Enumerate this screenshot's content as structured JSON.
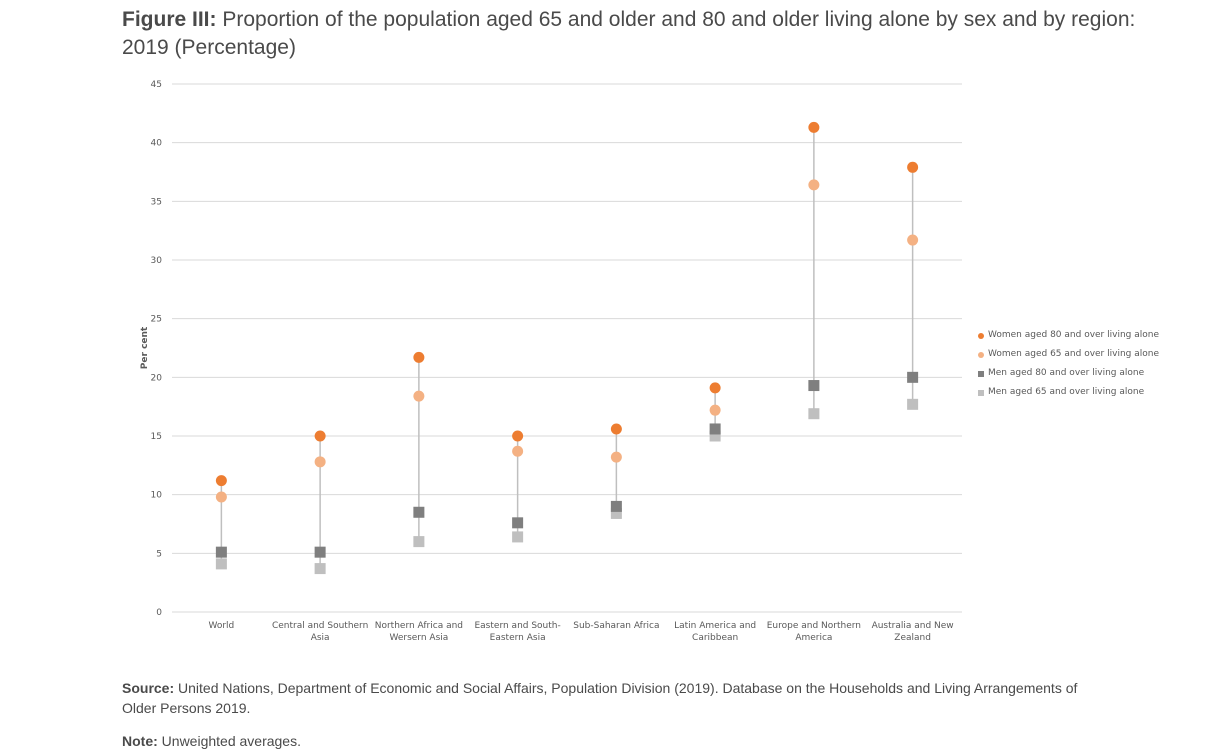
{
  "header": {
    "title_bold": "Figure III:",
    "title_rest": " Proportion of the population aged 65 and older and 80 and older living alone by sex and by region: 2019 (Percentage)"
  },
  "footer": {
    "source_label": "Source:",
    "source_text": " United Nations, Department of Economic and Social Affairs, Population Division (2019). Database on the Households and Living Arrangements of Older Persons 2019.",
    "note_label": "Note:",
    "note_text": " Unweighted averages."
  },
  "chart_data": {
    "type": "scatter",
    "ylabel": "Per cent",
    "ylim": [
      0,
      45
    ],
    "yticks": [
      0,
      5,
      10,
      15,
      20,
      25,
      30,
      35,
      40,
      45
    ],
    "grid": true,
    "legend_position": "right",
    "categories": [
      [
        "World"
      ],
      [
        "Central and Southern",
        "Asia"
      ],
      [
        "Northern Africa and",
        "Wersern Asia"
      ],
      [
        "Eastern and South-",
        "Eastern Asia"
      ],
      [
        "Sub-Saharan Africa"
      ],
      [
        "Latin America and",
        "Caribbean"
      ],
      [
        "Europe and Northern",
        "America"
      ],
      [
        "Australia and New",
        "Zealand"
      ]
    ],
    "series": [
      {
        "name": "Women aged 80 and over living alone",
        "marker": "circle",
        "color": "#ed7d31",
        "values": [
          11.2,
          15.0,
          21.7,
          15.0,
          15.6,
          19.1,
          41.3,
          37.9
        ]
      },
      {
        "name": "Women aged 65 and over living alone",
        "marker": "circle",
        "color": "#f4b183",
        "values": [
          9.8,
          12.8,
          18.4,
          13.7,
          13.2,
          17.2,
          36.4,
          31.7
        ]
      },
      {
        "name": "Men aged 80 and over living alone",
        "marker": "square",
        "color": "#7f7f7f",
        "values": [
          5.1,
          5.1,
          8.5,
          7.6,
          9.0,
          15.6,
          19.3,
          20.0
        ]
      },
      {
        "name": "Men aged 65 and over living alone",
        "marker": "square",
        "color": "#bfbfbf",
        "values": [
          4.1,
          3.7,
          6.0,
          6.4,
          8.4,
          15.0,
          16.9,
          17.7
        ]
      }
    ],
    "range_line_color": "#bfbfbf",
    "grid_color": "#d9d9d9"
  }
}
